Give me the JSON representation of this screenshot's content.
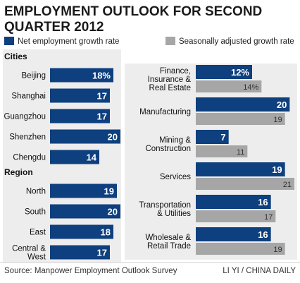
{
  "title_line1": "EMPLOYMENT OUTLOOK FOR SECOND",
  "title_line2": "QUARTER 2012",
  "legend": {
    "net": "Net employment growth rate",
    "seasonal": "Seasonally adjusted growth rate"
  },
  "colors": {
    "net": "#0e3f7e",
    "seasonal": "#a6a6a6",
    "panel": "#ededed"
  },
  "footer": {
    "source": "Source: Manpower Employment Outlook Survey",
    "credit": "LI YI / CHINA DAILY"
  },
  "chart_data": [
    {
      "type": "bar",
      "section": "Cities",
      "categories": [
        "Beijing",
        "Shanghai",
        "Guangzhou",
        "Shenzhen",
        "Chengdu"
      ],
      "series": [
        {
          "name": "Net employment growth rate",
          "values": [
            18,
            17,
            17,
            20,
            14
          ],
          "labels": [
            "18%",
            "17",
            "17",
            "20",
            "14"
          ]
        }
      ]
    },
    {
      "type": "bar",
      "section": "Region",
      "categories": [
        "North",
        "South",
        "East",
        "Central & West"
      ],
      "series": [
        {
          "name": "Net employment growth rate",
          "values": [
            19,
            20,
            18,
            17
          ],
          "labels": [
            "19",
            "20",
            "18",
            "17"
          ]
        }
      ]
    },
    {
      "type": "bar",
      "categories": [
        "Finance, Insurance & Real Estate",
        "Manufacturing",
        "Mining & Construction",
        "Services",
        "Transportation & Utilities",
        "Wholesale & Retail Trade"
      ],
      "series": [
        {
          "name": "Net employment growth rate",
          "values": [
            12,
            20,
            7,
            19,
            16,
            16
          ],
          "labels": [
            "12%",
            "20",
            "7",
            "19",
            "16",
            "16"
          ]
        },
        {
          "name": "Seasonally adjusted growth rate",
          "values": [
            14,
            19,
            11,
            21,
            17,
            19
          ],
          "labels": [
            "14%",
            "19",
            "11",
            "21",
            "17",
            "19"
          ]
        }
      ]
    }
  ]
}
